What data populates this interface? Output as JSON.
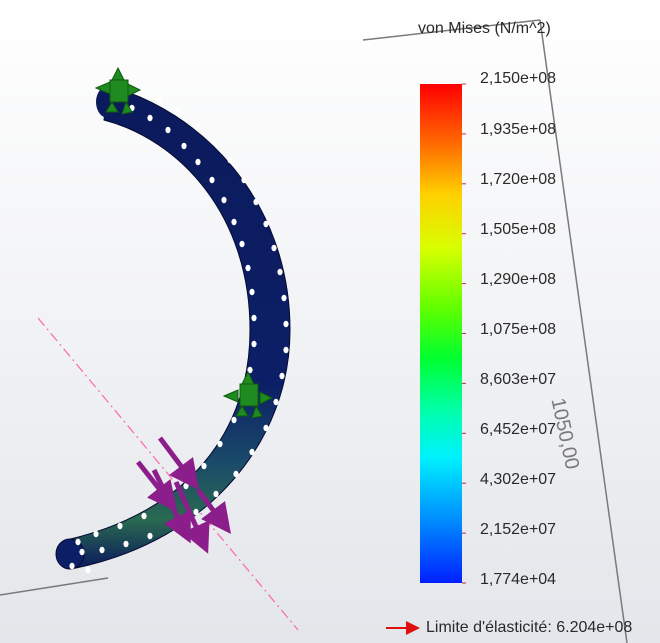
{
  "legend": {
    "title": "von Mises (N/m^2)",
    "ticks": [
      "2,150e+08",
      "1,935e+08",
      "1,720e+08",
      "1,505e+08",
      "1,290e+08",
      "1,075e+08",
      "8,603e+07",
      "6,452e+07",
      "4,302e+07",
      "2,152e+07",
      "1,774e+04"
    ],
    "yield_label": "Limite d'élasticité: 6.204e+08"
  },
  "dimension": "1050,00",
  "colors": {
    "part": "#0b1a5c",
    "fixture": "#1f8a1f",
    "load": "#8c1e8c",
    "yield_arrow": "#e01010",
    "axis_line": "#ff66aa",
    "sketch_line": "#7a7a7a"
  }
}
